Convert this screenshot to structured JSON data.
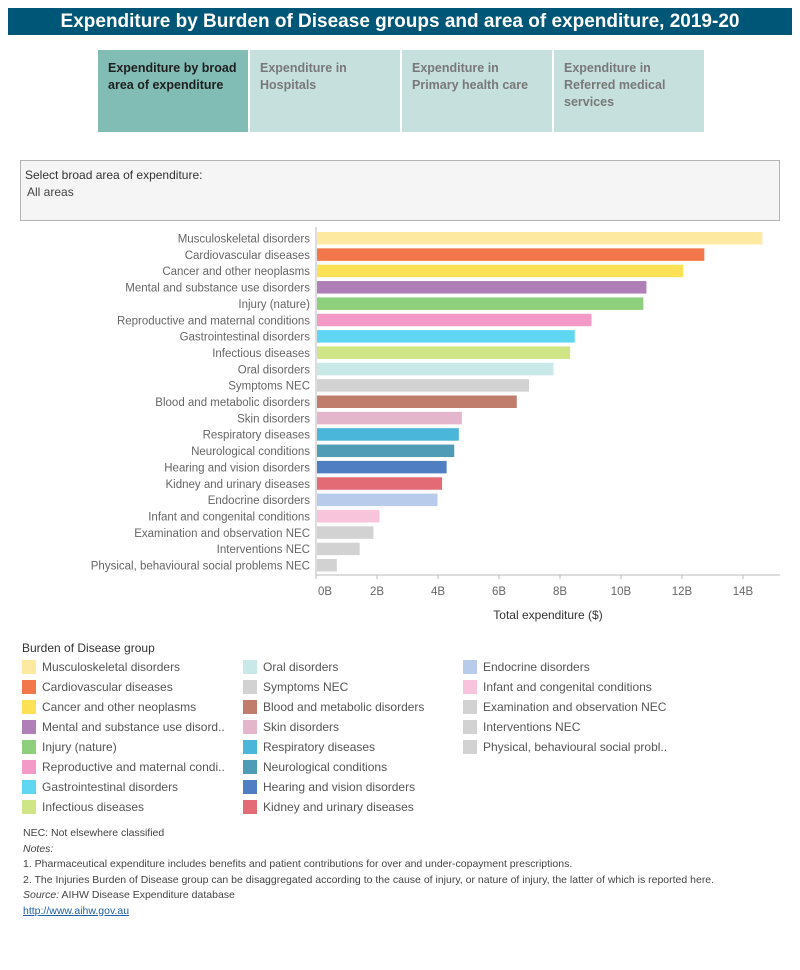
{
  "header": {
    "title": "Expenditure by Burden of Disease groups and area of expenditure, 2019-20"
  },
  "tabs": [
    {
      "label": "Expenditure by broad area of expenditure",
      "active": true
    },
    {
      "label": "Expenditure in Hospitals",
      "active": false
    },
    {
      "label": "Expenditure in Primary health care",
      "active": false
    },
    {
      "label": "Expenditure in Referred medical services",
      "active": false
    }
  ],
  "filter": {
    "label": "Select broad area of expenditure:",
    "value": "All areas"
  },
  "chart_data": {
    "type": "bar",
    "orientation": "horizontal",
    "title": "",
    "xlabel": "Total expenditure ($)",
    "ylabel": "",
    "xlim": [
      0,
      15
    ],
    "xticks": [
      0,
      2,
      4,
      6,
      8,
      10,
      12,
      14
    ],
    "xtick_labels": [
      "0B",
      "2B",
      "4B",
      "6B",
      "8B",
      "10B",
      "12B",
      "14B"
    ],
    "grid": false,
    "categories": [
      "Musculoskeletal disorders",
      "Cardiovascular diseases",
      "Cancer and other neoplasms",
      "Mental and substance use disorders",
      "Injury (nature)",
      "Reproductive and maternal conditions",
      "Gastrointestinal disorders",
      "Infectious diseases",
      "Oral disorders",
      "Symptoms NEC",
      "Blood and metabolic disorders",
      "Skin disorders",
      "Respiratory diseases",
      "Neurological conditions",
      "Hearing and vision disorders",
      "Kidney and urinary diseases",
      "Endocrine disorders",
      "Infant and congenital conditions",
      "Examination and observation NEC",
      "Interventions NEC",
      "Physical, behavioural social problems NEC"
    ],
    "values": [
      14.6,
      12.7,
      12.0,
      10.8,
      10.7,
      9.0,
      8.45,
      8.3,
      7.75,
      6.95,
      6.55,
      4.75,
      4.65,
      4.5,
      4.25,
      4.1,
      3.95,
      2.05,
      1.85,
      1.4,
      0.65
    ],
    "colors": [
      "#fde9a0",
      "#f2784b",
      "#fde155",
      "#b07fb8",
      "#8ecf7e",
      "#f49ac8",
      "#5fd6f2",
      "#d0e585",
      "#c9e8e8",
      "#d2d2d2",
      "#c07d6b",
      "#e3b6cb",
      "#4ab6da",
      "#4e9cb5",
      "#4f7fc2",
      "#e36b76",
      "#b8cbea",
      "#f7c4dc",
      "#d2d2d2",
      "#d2d2d2",
      "#d2d2d2"
    ]
  },
  "legend": {
    "title": "Burden of Disease group",
    "items": [
      {
        "label": "Musculoskeletal disorders",
        "color": "#fde9a0"
      },
      {
        "label": "Cardiovascular diseases",
        "color": "#f2784b"
      },
      {
        "label": "Cancer and other neoplasms",
        "color": "#fde155"
      },
      {
        "label": "Mental and substance use disord..",
        "color": "#b07fb8"
      },
      {
        "label": "Injury (nature)",
        "color": "#8ecf7e"
      },
      {
        "label": "Reproductive and maternal condi..",
        "color": "#f49ac8"
      },
      {
        "label": "Gastrointestinal disorders",
        "color": "#5fd6f2"
      },
      {
        "label": "Infectious diseases",
        "color": "#d0e585"
      },
      {
        "label": "Oral disorders",
        "color": "#c9e8e8"
      },
      {
        "label": "Symptoms NEC",
        "color": "#d2d2d2"
      },
      {
        "label": "Blood and metabolic disorders",
        "color": "#c07d6b"
      },
      {
        "label": "Skin disorders",
        "color": "#e3b6cb"
      },
      {
        "label": "Respiratory diseases",
        "color": "#4ab6da"
      },
      {
        "label": "Neurological conditions",
        "color": "#4e9cb5"
      },
      {
        "label": "Hearing and vision disorders",
        "color": "#4f7fc2"
      },
      {
        "label": "Kidney and urinary diseases",
        "color": "#e36b76"
      },
      {
        "label": "Endocrine disorders",
        "color": "#b8cbea"
      },
      {
        "label": "Infant and congenital conditions",
        "color": "#f7c4dc"
      },
      {
        "label": "Examination and observation NEC",
        "color": "#d2d2d2"
      },
      {
        "label": "Interventions NEC",
        "color": "#d2d2d2"
      },
      {
        "label": "Physical, behavioural social probl..",
        "color": "#d2d2d2"
      }
    ]
  },
  "notes": {
    "nec": "NEC: Not elsewhere classified",
    "notes_label": "Notes:",
    "note1": "1. Pharmaceutical expenditure includes benefits and patient contributions for over and under-copayment prescriptions.",
    "note2": "2. The Injuries Burden of Disease group can be disaggregated according to the cause of injury, or nature of injury, the latter of which is reported here.",
    "source_label": "Source:",
    "source_text": "AIHW Disease Expenditure database",
    "link": "http://www.aihw.gov.au"
  }
}
